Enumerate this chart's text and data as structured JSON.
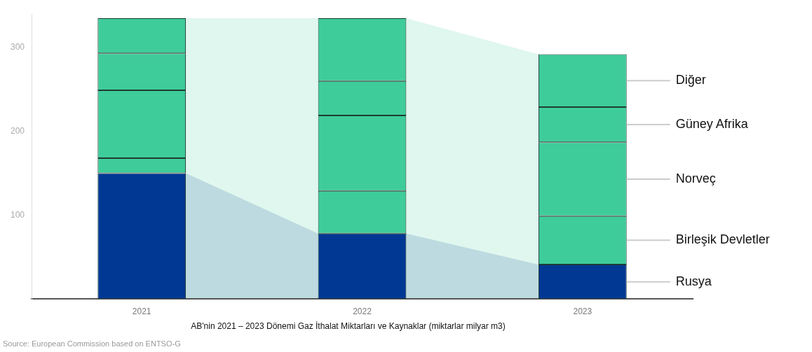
{
  "chart_data": {
    "type": "bar",
    "stacked": true,
    "title": "AB'nin 2021 – 2023 Dönemi Gaz İthalat Miktarları ve Kaynaklar (miktarlar milyar m3)",
    "categories": [
      "2021",
      "2022",
      "2023"
    ],
    "series": [
      {
        "name": "Rusya",
        "color": "#003893",
        "values": [
          150,
          78,
          41
        ]
      },
      {
        "name": "Birleşik Devletler",
        "color": "#3ecc9a",
        "values": [
          18,
          51,
          58
        ]
      },
      {
        "name": "Norveç",
        "color": "#3ecc9a",
        "values": [
          81,
          90,
          88
        ]
      },
      {
        "name": "Güney Afrika",
        "color": "#3ecc9a",
        "values": [
          44,
          41,
          42
        ]
      },
      {
        "name": "Diğer",
        "color": "#3ecc9a",
        "values": [
          42,
          75,
          63
        ]
      }
    ],
    "ylim": [
      0,
      340
    ],
    "yticks": [
      100,
      200,
      300
    ],
    "grid": false,
    "legend": false,
    "annotations": [
      "Source: European Commission based on ENTSO-G"
    ]
  }
}
